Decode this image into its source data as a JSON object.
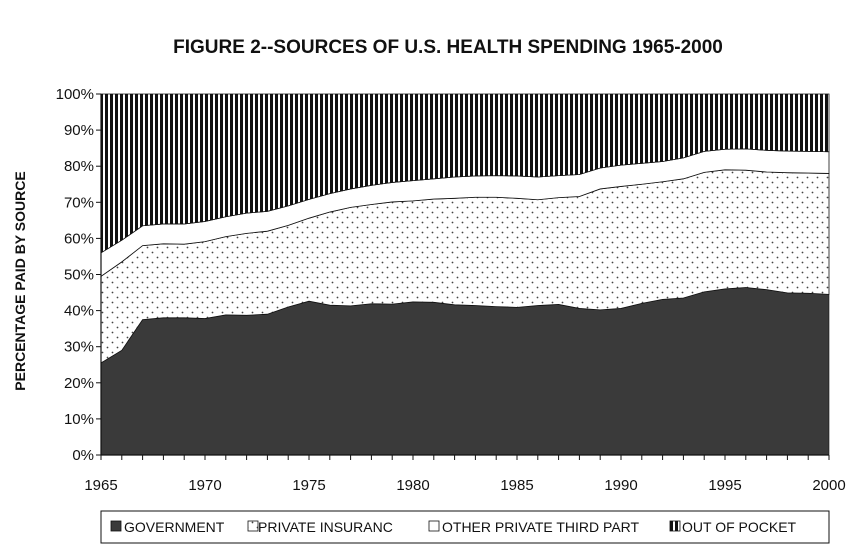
{
  "chart_data": {
    "type": "area",
    "stacked": true,
    "title": "FIGURE 2--SOURCES OF U.S. HEALTH SPENDING 1965-2000",
    "xlabel": "",
    "ylabel": "PERCENTAGE PAID BY SOURCE",
    "ylim": [
      0,
      100
    ],
    "xlim": [
      1965,
      2000
    ],
    "ytick_labels": [
      "0%",
      "10%",
      "20%",
      "30%",
      "40%",
      "50%",
      "60%",
      "70%",
      "80%",
      "90%",
      "100%"
    ],
    "xtick_labels": [
      "1965",
      "1970",
      "1975",
      "1980",
      "1985",
      "1990",
      "1995",
      "2000"
    ],
    "x": [
      1965,
      1966,
      1967,
      1968,
      1969,
      1970,
      1971,
      1972,
      1973,
      1974,
      1975,
      1976,
      1977,
      1978,
      1979,
      1980,
      1981,
      1982,
      1983,
      1984,
      1985,
      1986,
      1987,
      1988,
      1989,
      1990,
      1991,
      1992,
      1993,
      1994,
      1995,
      1996,
      1997,
      1998,
      1999,
      2000
    ],
    "series": [
      {
        "name": "GOVERNMENT",
        "fill": "dark",
        "values": [
          25.5,
          29,
          37.5,
          38,
          38,
          37.8,
          38.8,
          38.7,
          39,
          41,
          42.6,
          41.5,
          41.3,
          41.9,
          41.8,
          42.4,
          42.3,
          41.6,
          41.4,
          41.1,
          40.9,
          41.4,
          41.7,
          40.6,
          40.2,
          40.6,
          42,
          43.1,
          43.5,
          45.2,
          46,
          46.4,
          45.8,
          44.9,
          44.8,
          44.5
        ]
      },
      {
        "name": "PRIVATE INSURANCE",
        "fill": "dots",
        "values": [
          24,
          24.5,
          20.5,
          20.5,
          20.4,
          21.3,
          21.7,
          22.7,
          23,
          22.6,
          23,
          25.8,
          27.3,
          27.5,
          28.3,
          28,
          28.6,
          29.5,
          30,
          30.3,
          30.2,
          29.3,
          29.6,
          31,
          33.5,
          33.8,
          33,
          32.6,
          33,
          33.1,
          33,
          32.5,
          32.6,
          33.3,
          33.3,
          33.5
        ]
      },
      {
        "name": "OTHER PRIVATE THIRD PARTY",
        "fill": "white",
        "values": [
          6.5,
          6,
          5.5,
          5.5,
          5.6,
          5.6,
          5.5,
          5.6,
          5.5,
          5.4,
          5.2,
          5.1,
          5.1,
          5.3,
          5.4,
          5.6,
          5.6,
          5.9,
          5.9,
          6,
          6.2,
          6.3,
          6.1,
          6.1,
          5.8,
          5.9,
          5.8,
          5.6,
          5.8,
          5.8,
          5.7,
          5.9,
          6,
          6,
          6,
          6
        ]
      },
      {
        "name": "OUT OF POCKET",
        "fill": "vstripes",
        "values": [
          44,
          40.5,
          36.5,
          36,
          36,
          35.3,
          34,
          33,
          32.5,
          31,
          29.2,
          27.6,
          26.3,
          25.3,
          24.5,
          24,
          23.5,
          23,
          22.7,
          22.6,
          22.7,
          23,
          22.6,
          22.3,
          20.5,
          19.7,
          19.2,
          18.7,
          17.7,
          15.9,
          15.3,
          15.2,
          15.6,
          15.8,
          15.9,
          16
        ]
      }
    ],
    "legend": {
      "position": "bottom",
      "labels": [
        "GOVERNMENT",
        "PRIVATE INSURANCE",
        "OTHER PRIVATE THIRD PARTY",
        "OUT OF POCKET"
      ],
      "display_text": [
        "GOVERNMENT",
        "PRIVATE INSURANC",
        "OTHER PRIVATE THIRD PART",
        "OUT OF POCKET"
      ]
    },
    "grid": false
  },
  "colors": {
    "government": "#3a3a3a",
    "stripe": "#111111",
    "dot": "#444444",
    "axis": "#111111"
  }
}
